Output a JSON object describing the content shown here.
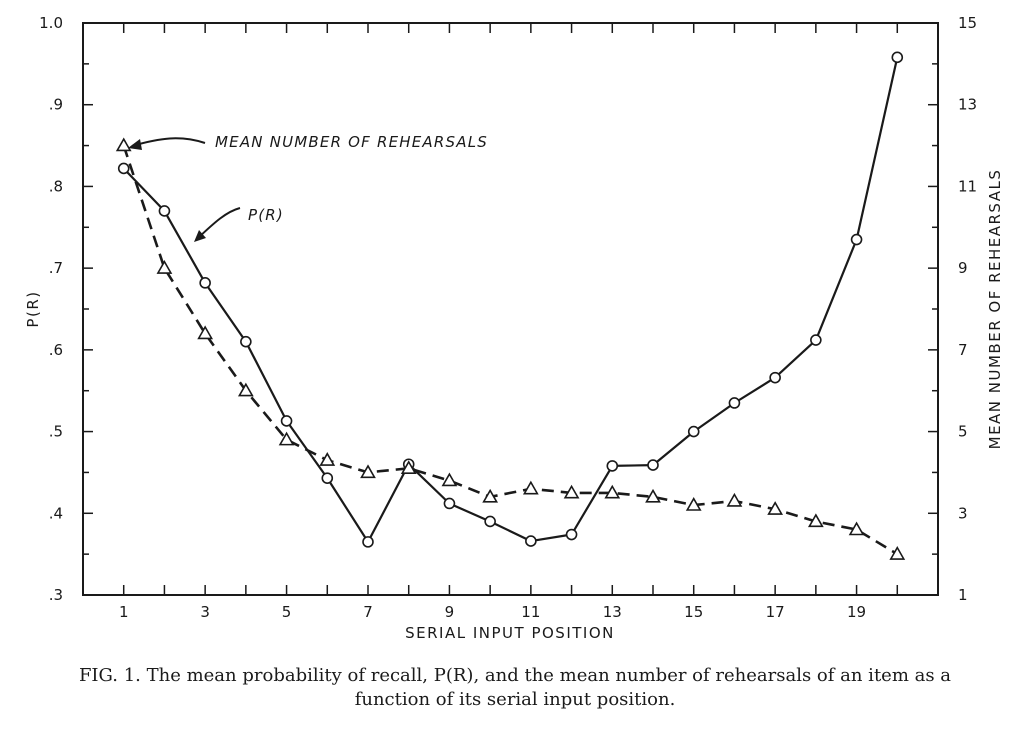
{
  "chart_data": {
    "type": "line",
    "title": "",
    "xlabel": "SERIAL INPUT POSITION",
    "ylabel_left": "P(R)",
    "ylabel_right": "MEAN NUMBER OF REHEARSALS",
    "x": [
      1,
      2,
      3,
      4,
      5,
      6,
      7,
      8,
      9,
      10,
      11,
      12,
      13,
      14,
      15,
      16,
      17,
      18,
      19,
      20
    ],
    "x_tick_labels": [
      "1",
      "3",
      "5",
      "7",
      "9",
      "11",
      "13",
      "15",
      "17",
      "19"
    ],
    "y_left_tick_labels": [
      "1.0",
      ".9",
      ".8",
      ".7",
      ".6",
      ".5",
      ".4",
      ".3"
    ],
    "y_right_tick_labels": [
      "15",
      "13",
      "11",
      "9",
      "7",
      "5",
      "3",
      "1"
    ],
    "xlim": [
      0,
      21
    ],
    "ylim_left": [
      0.3,
      1.0
    ],
    "ylim_right": [
      1,
      15
    ],
    "grid": false,
    "series": [
      {
        "name": "P(R)",
        "axis": "left",
        "marker": "circle",
        "line": "solid",
        "values": [
          0.822,
          0.77,
          0.682,
          0.61,
          0.513,
          0.443,
          0.365,
          0.46,
          0.412,
          0.39,
          0.366,
          0.374,
          0.458,
          0.459,
          0.5,
          0.535,
          0.566,
          0.612,
          0.735,
          0.958
        ]
      },
      {
        "name": "MEAN NUMBER OF REHEARSALS",
        "axis": "right",
        "marker": "triangle",
        "line": "dashed",
        "values": [
          12.0,
          9.0,
          7.4,
          6.0,
          4.8,
          4.3,
          4.0,
          4.1,
          3.8,
          3.4,
          3.6,
          3.5,
          3.5,
          3.4,
          3.2,
          3.3,
          3.1,
          2.8,
          2.6,
          2.0
        ]
      }
    ],
    "annotations": [
      "MEAN NUMBER OF REHEARSALS",
      "P(R)"
    ]
  },
  "caption": "FIG. 1. The mean probability of recall, P(R), and the mean number of rehearsals of an item as a function of its serial input position."
}
